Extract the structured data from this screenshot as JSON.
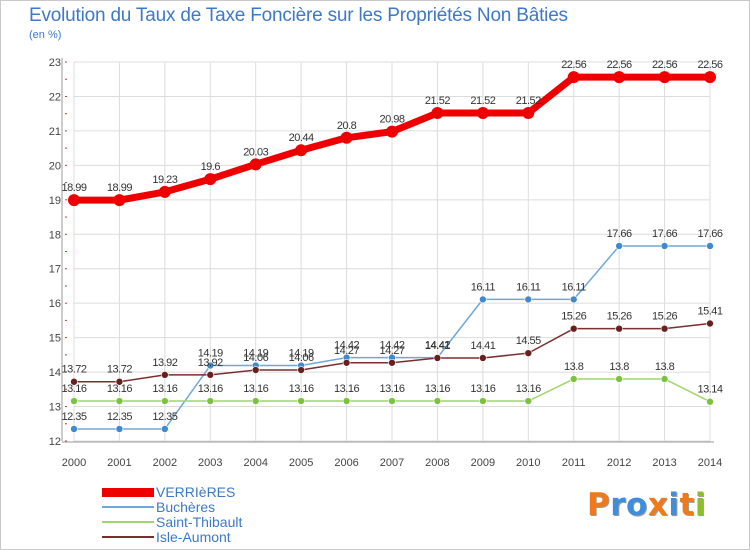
{
  "title": "Evolution du Taux de Taxe Foncière sur les Propriétés Non Bâties",
  "unit_label": "(en %)",
  "logo": {
    "text": "Proxiti",
    "letters": [
      "P",
      "r",
      "o",
      "x",
      "i",
      "t",
      "i"
    ],
    "colors": [
      "#f07a19",
      "#3e8ede",
      "#3e8ede",
      "#f07a19",
      "#3e8ede",
      "#f07a19",
      "#8cbf2c"
    ]
  },
  "chart_data": {
    "type": "line",
    "title": "Evolution du Taux de Taxe Foncière sur les Propriétés Non Bâties",
    "ylabel": "(en %)",
    "xlabel": "",
    "x": [
      "2000",
      "2001",
      "2002",
      "2003",
      "2004",
      "2005",
      "2006",
      "2007",
      "2008",
      "2009",
      "2010",
      "2011",
      "2012",
      "2013",
      "2014"
    ],
    "ylim": [
      12,
      23
    ],
    "yticks": [
      "12",
      "13",
      "14",
      "15",
      "16",
      "17",
      "18",
      "19",
      "20",
      "21",
      "22",
      "23"
    ],
    "grid": true,
    "legend_position": "bottom-left",
    "series": [
      {
        "name": "VERRIèRES",
        "color": "#ee0000",
        "marker": "#ee0000",
        "thick": true,
        "values": [
          18.99,
          18.99,
          19.23,
          19.6,
          20.03,
          20.44,
          20.8,
          20.98,
          21.52,
          21.52,
          21.52,
          22.56,
          22.56,
          22.56,
          22.56
        ],
        "labels": [
          "18.99",
          "18.99",
          "19.23",
          "19.6",
          "20.03",
          "20.44",
          "20.8",
          "20.98",
          "21.52",
          "21.52",
          "21.52",
          "22.56",
          "22.56",
          "22.56",
          "22.56"
        ]
      },
      {
        "name": "Buchères",
        "color": "#6fa8d8",
        "marker": "#3d8ad0",
        "thick": false,
        "values": [
          12.35,
          12.35,
          12.35,
          14.19,
          14.19,
          14.19,
          14.42,
          14.42,
          14.42,
          16.11,
          16.11,
          16.11,
          17.66,
          17.66,
          17.66
        ],
        "labels": [
          "12.35",
          "12.35",
          "12.35",
          "14.19",
          "14.19",
          "14.19",
          "14.42",
          "14.42",
          "14.42",
          "16.11",
          "16.11",
          "16.11",
          "17.66",
          "17.66",
          "17.66"
        ]
      },
      {
        "name": "Saint-Thibault",
        "color": "#9ed66c",
        "marker": "#7cc23c",
        "thick": false,
        "values": [
          13.16,
          13.16,
          13.16,
          13.16,
          13.16,
          13.16,
          13.16,
          13.16,
          13.16,
          13.16,
          13.16,
          13.8,
          13.8,
          13.8,
          13.14
        ],
        "labels": [
          "13.16",
          "13.16",
          "13.16",
          "13.16",
          "13.16",
          "13.16",
          "13.16",
          "13.16",
          "13.16",
          "13.16",
          "13.16",
          "13.8",
          "13.8",
          "13.8",
          "13.14"
        ]
      },
      {
        "name": "Isle-Aumont",
        "color": "#7a2f2f",
        "marker": "#6a1f1f",
        "thick": false,
        "values": [
          13.72,
          13.72,
          13.92,
          13.92,
          14.06,
          14.06,
          14.27,
          14.27,
          14.41,
          14.41,
          14.55,
          15.26,
          15.26,
          15.26,
          15.41
        ],
        "labels": [
          "13.72",
          "13.72",
          "13.92",
          "13.92",
          "14.06",
          "14.06",
          "14.27",
          "14.27",
          "14.41",
          "14.41",
          "14.55",
          "15.26",
          "15.26",
          "15.26",
          "15.41"
        ]
      }
    ]
  }
}
